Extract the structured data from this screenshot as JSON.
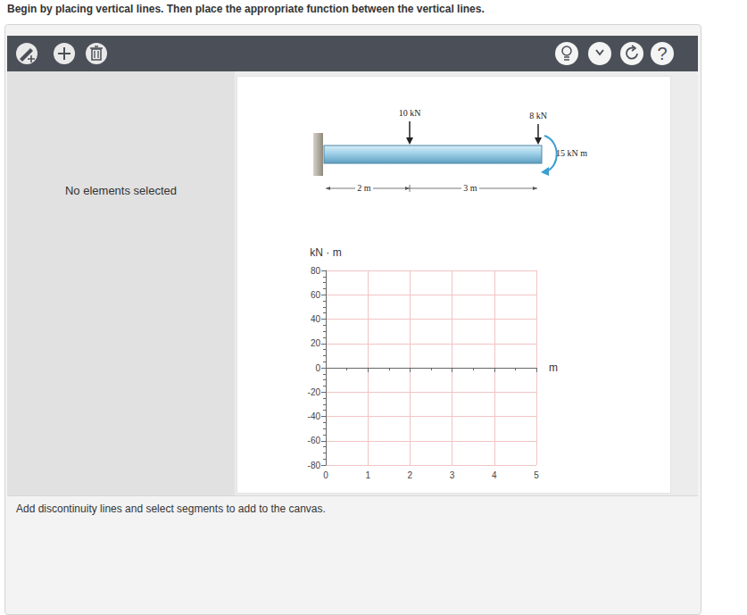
{
  "instruction": "Begin by placing vertical lines. Then place the appropriate function between the vertical lines.",
  "toolbar": {
    "help": "?"
  },
  "side_panel": "No elements selected",
  "beam": {
    "loads": [
      {
        "label": "10 kN"
      },
      {
        "label": "8 kN"
      }
    ],
    "moment": "15 kN m",
    "spans": [
      {
        "label": "2 m"
      },
      {
        "label": "3 m"
      }
    ]
  },
  "chart_data": {
    "type": "line",
    "series": [],
    "x_label": "m",
    "y_label": "kN · m",
    "xlim": [
      0,
      5
    ],
    "xticks": [
      0,
      1,
      2,
      3,
      4,
      5
    ],
    "ylim": [
      -80,
      80
    ],
    "yticks": [
      -80,
      -60,
      -40,
      -20,
      0,
      20,
      40,
      60,
      80
    ],
    "grid": true
  },
  "footer": "Add discontinuity lines and select segments to add to the canvas."
}
